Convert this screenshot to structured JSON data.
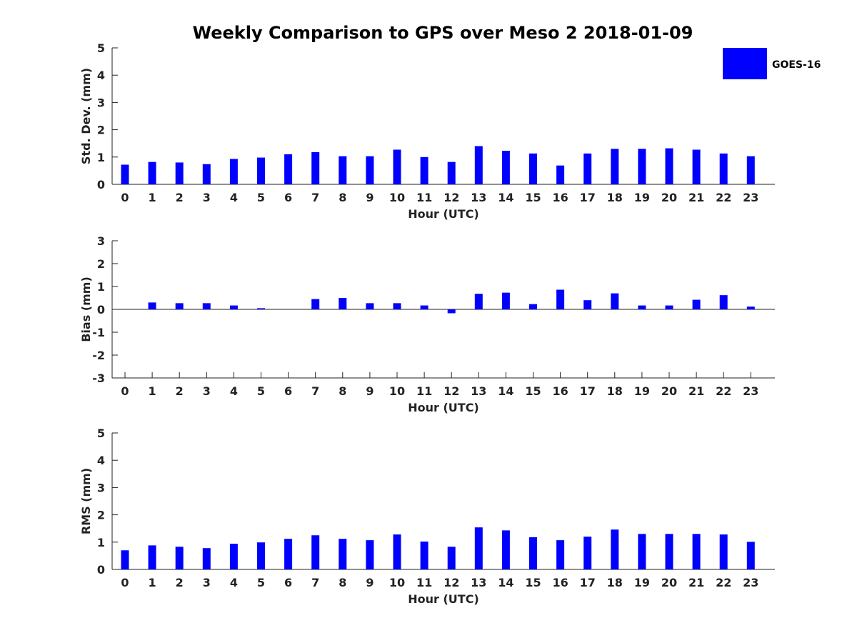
{
  "chart_data": {
    "type": "bar",
    "title": "Weekly Comparison to GPS over Meso 2 2018-01-09",
    "legend": {
      "label": "GOES-16",
      "color": "#0000ff",
      "placement": "top-right"
    },
    "bar_color": "#0000ff",
    "categories": [
      "0",
      "1",
      "2",
      "3",
      "4",
      "5",
      "6",
      "7",
      "8",
      "9",
      "10",
      "11",
      "12",
      "13",
      "14",
      "15",
      "16",
      "17",
      "18",
      "19",
      "20",
      "21",
      "22",
      "23"
    ],
    "panels": [
      {
        "name": "std-dev",
        "xlabel": "Hour (UTC)",
        "ylabel": "Std. Dev. (mm)",
        "ylim": [
          0,
          5
        ],
        "yticks": [
          "0",
          "1",
          "2",
          "3",
          "4",
          "5"
        ],
        "values": [
          0.72,
          0.82,
          0.8,
          0.74,
          0.93,
          0.98,
          1.1,
          1.18,
          1.03,
          1.03,
          1.27,
          1.0,
          0.82,
          1.4,
          1.23,
          1.13,
          0.69,
          1.13,
          1.3,
          1.3,
          1.32,
          1.27,
          1.13,
          1.03
        ],
        "zero_line": false
      },
      {
        "name": "bias",
        "xlabel": "Hour (UTC)",
        "ylabel": "Bias (mm)",
        "ylim": [
          -3,
          3
        ],
        "yticks": [
          "-3",
          "-2",
          "-1",
          "0",
          "1",
          "2",
          "3"
        ],
        "values": [
          0.0,
          0.3,
          0.27,
          0.27,
          0.17,
          0.05,
          0.0,
          0.45,
          0.5,
          0.27,
          0.27,
          0.17,
          -0.17,
          0.68,
          0.73,
          0.23,
          0.86,
          0.4,
          0.7,
          0.17,
          0.17,
          0.42,
          0.62,
          0.12
        ],
        "zero_line": true
      },
      {
        "name": "rms",
        "xlabel": "Hour (UTC)",
        "ylabel": "RMS (mm)",
        "ylim": [
          0,
          5
        ],
        "yticks": [
          "0",
          "1",
          "2",
          "3",
          "4",
          "5"
        ],
        "values": [
          0.7,
          0.88,
          0.83,
          0.78,
          0.94,
          0.99,
          1.12,
          1.25,
          1.12,
          1.07,
          1.28,
          1.02,
          0.83,
          1.54,
          1.43,
          1.18,
          1.07,
          1.2,
          1.46,
          1.3,
          1.3,
          1.3,
          1.28,
          1.01
        ],
        "zero_line": false
      }
    ]
  }
}
